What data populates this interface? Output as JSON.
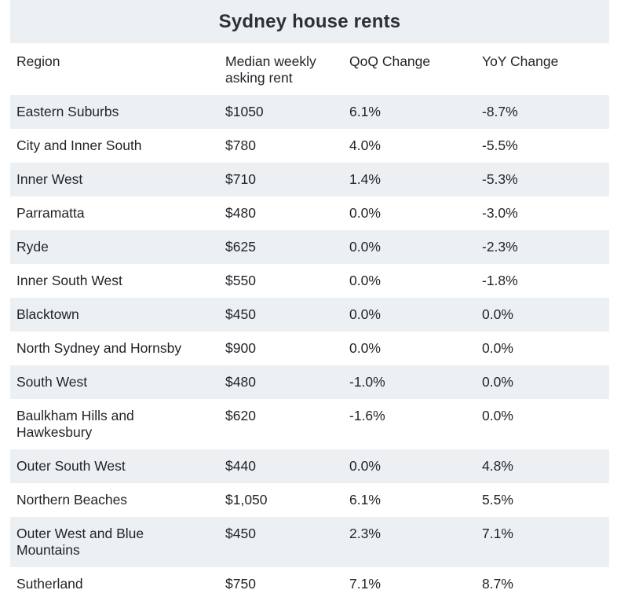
{
  "table": {
    "title": "Sydney house rents",
    "headers": [
      "Region",
      "Median weekly asking rent",
      "QoQ Change",
      "YoY Change"
    ],
    "rows": [
      [
        "Eastern Suburbs",
        "$1050",
        "6.1%",
        "-8.7%"
      ],
      [
        "City and Inner South",
        "$780",
        "4.0%",
        "-5.5%"
      ],
      [
        "Inner West",
        "$710",
        "1.4%",
        "-5.3%"
      ],
      [
        "Parramatta",
        "$480",
        "0.0%",
        "-3.0%"
      ],
      [
        "Ryde",
        "$625",
        "0.0%",
        "-2.3%"
      ],
      [
        "Inner South West",
        "$550",
        "0.0%",
        "-1.8%"
      ],
      [
        "Blacktown",
        "$450",
        "0.0%",
        "0.0%"
      ],
      [
        "North Sydney and Hornsby",
        "$900",
        "0.0%",
        "0.0%"
      ],
      [
        "South West",
        "$480",
        "-1.0%",
        "0.0%"
      ],
      [
        "Baulkham Hills and Hawkesbury",
        "$620",
        "-1.6%",
        "0.0%"
      ],
      [
        "Outer South West",
        "$440",
        "0.0%",
        "4.8%"
      ],
      [
        "Northern Beaches",
        "$1,050",
        "6.1%",
        "5.5%"
      ],
      [
        "Outer West and Blue Mountains",
        "$450",
        "2.3%",
        "7.1%"
      ],
      [
        "Sutherland",
        "$750",
        "7.1%",
        "8.7%"
      ]
    ]
  },
  "colors": {
    "title_band": "#edf0f3",
    "stripe": "#edf0f3",
    "text": "#1f2328"
  }
}
